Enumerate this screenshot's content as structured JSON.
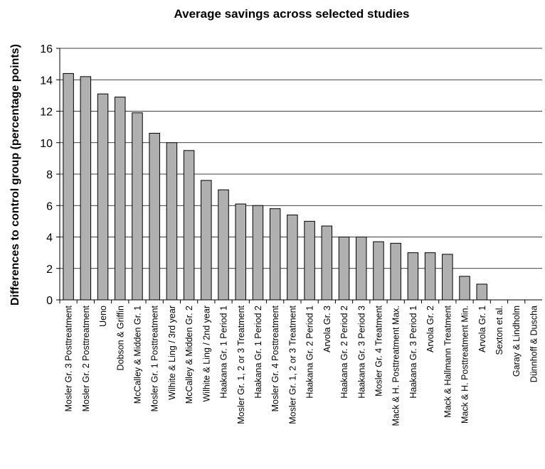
{
  "chart_data": {
    "type": "bar",
    "title": "Average savings across selected studies",
    "xlabel": "",
    "ylabel": "Differences to control group (percentage points)",
    "ylim": [
      0,
      16
    ],
    "yticks": [
      0,
      2,
      4,
      6,
      8,
      10,
      12,
      14,
      16
    ],
    "grid": true,
    "categories": [
      "Mosler Gr. 3 Posttreatment",
      "Mosler Gr. 2 Posttreatment",
      "Ueno",
      "Dobson & Griffin",
      "McCalley & Midden Gr. 1",
      "Mosler Gr. 1 Posttreatment",
      "Wilhite & Ling / 3rd year",
      "McCalley & Midden Gr. 2",
      "Wilhite & Ling / 2nd year",
      "Haakana Gr. 1 Period 1",
      "Mosler Gr. 1, 2 or 3 Treatment",
      "Haakana Gr. 1 Period 2",
      "Mosler Gr. 4 Posttreatment",
      "Mosler Gr. 1, 2 or 3 Treatment",
      "Haakana Gr. 2 Period 1",
      "Arvola Gr. 3",
      "Haakana Gr. 2 Period 2",
      "Haakana Gr. 3 Period 3",
      "Mosler Gr. 4 Treatment",
      "Mack & H. Posttreatment Max.",
      "Haakana Gr. 3 Period 1",
      "Arvola Gr. 2",
      "Mack & Hallmann Treatment",
      "Mack & H. Posttreatment Min.",
      "Arvola Gr. 1",
      "Sexton et al.",
      "Garay & Lindholm",
      "Dünnhoff & Duscha"
    ],
    "values": [
      14.4,
      14.2,
      13.1,
      12.9,
      11.9,
      10.6,
      10.0,
      9.5,
      7.6,
      7.0,
      6.1,
      6.0,
      5.8,
      5.4,
      5.0,
      4.7,
      4.0,
      4.0,
      3.7,
      3.6,
      3.0,
      3.0,
      2.9,
      1.5,
      1.0,
      0,
      0,
      0
    ],
    "colors": {
      "bar_fill": "#b0b0b0",
      "bar_stroke": "#000000"
    }
  }
}
